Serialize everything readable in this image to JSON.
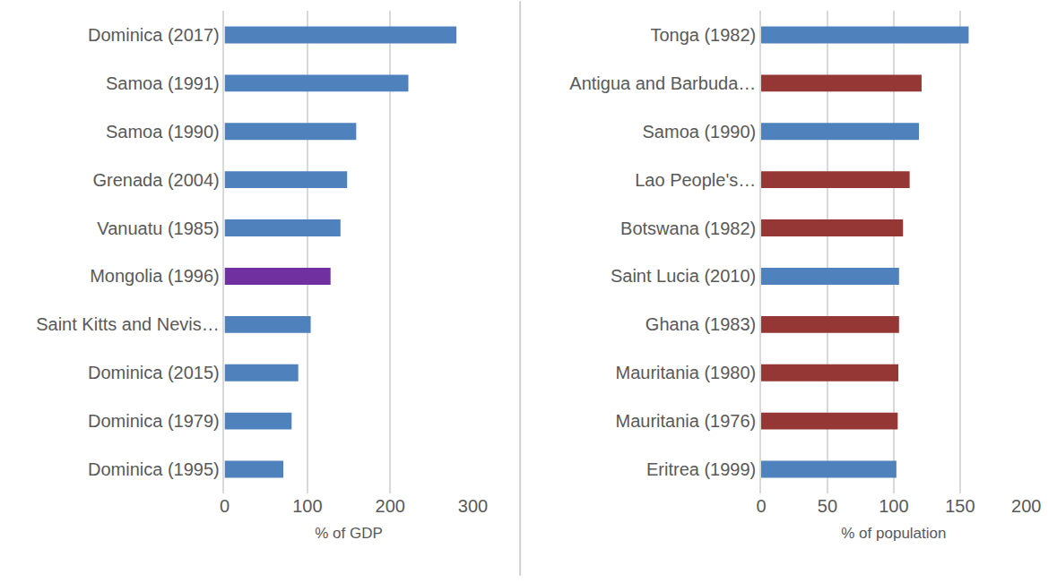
{
  "chart_data": [
    {
      "type": "bar",
      "orientation": "horizontal",
      "grid": true,
      "xlabel": "% of GDP",
      "categories": [
        "Dominica (2017)",
        "Samoa (1991)",
        "Samoa (1990)",
        "Grenada (2004)",
        "Vanuatu (1985)",
        "Mongolia (1996)",
        "Saint Kitts and Nevis…",
        "Dominica (2015)",
        "Dominica (1979)",
        "Dominica (1995)"
      ],
      "values": [
        280,
        222,
        159,
        148,
        140,
        128,
        104,
        89,
        81,
        71
      ],
      "colors": [
        "#4f81bd",
        "#4f81bd",
        "#4f81bd",
        "#4f81bd",
        "#4f81bd",
        "#7030a0",
        "#4f81bd",
        "#4f81bd",
        "#4f81bd",
        "#4f81bd"
      ],
      "xlim": [
        0,
        300
      ],
      "xticks": [
        0,
        100,
        200,
        300
      ]
    },
    {
      "type": "bar",
      "orientation": "horizontal",
      "grid": true,
      "xlabel": "% of population",
      "categories": [
        "Tonga (1982)",
        "Antigua and Barbuda…",
        "Samoa (1990)",
        "Lao People's…",
        "Botswana (1982)",
        "Saint Lucia (2010)",
        "Ghana (1983)",
        "Mauritania (1980)",
        "Mauritania (1976)",
        "Eritrea (1999)"
      ],
      "values": [
        156.5,
        121,
        119,
        112,
        107,
        104,
        104,
        103.5,
        103,
        102
      ],
      "colors": [
        "#4f81bd",
        "#953735",
        "#4f81bd",
        "#953735",
        "#953735",
        "#4f81bd",
        "#953735",
        "#953735",
        "#953735",
        "#4f81bd"
      ],
      "xlim": [
        0,
        200
      ],
      "xticks": [
        0,
        50,
        100,
        150,
        200
      ]
    }
  ]
}
